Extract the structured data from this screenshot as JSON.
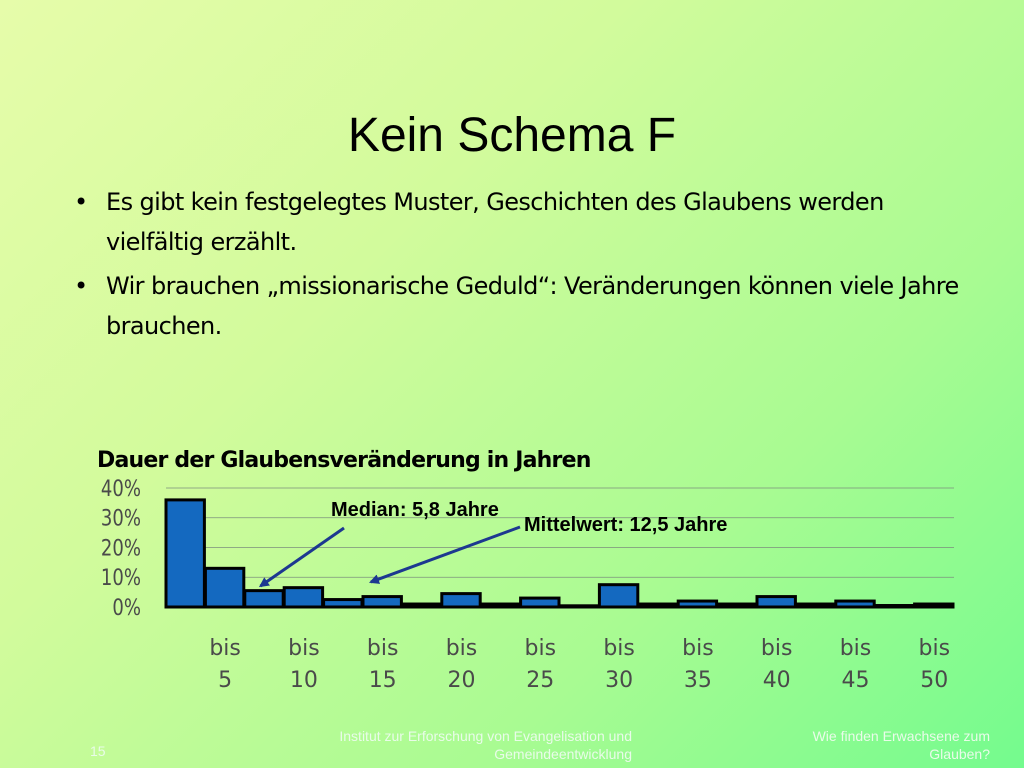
{
  "slide": {
    "title": "Kein Schema F",
    "bullets": [
      "Es gibt kein festgelegtes Muster, Geschichten des Glaubens werden vielfältig erzählt.",
      "Wir brauchen „missionarische Geduld“: Veränderungen können viele Jahre brauchen."
    ],
    "bullet_symbol": "•"
  },
  "chart_data": {
    "type": "bar",
    "title": "Dauer der Glaubensveränderung in Jahren",
    "ylim": [
      0,
      40
    ],
    "yticks": [
      "0%",
      "10%",
      "20%",
      "30%",
      "40%"
    ],
    "grid": true,
    "values": [
      36,
      13,
      5.5,
      6.5,
      2.5,
      3.5,
      1,
      4.5,
      1,
      3,
      0,
      7.5,
      1,
      2,
      1,
      3.5,
      1,
      2,
      0.5,
      1
    ],
    "xtick_labels": [
      {
        "top": "bis",
        "bottom": "5"
      },
      {
        "top": "bis",
        "bottom": "10"
      },
      {
        "top": "bis",
        "bottom": "15"
      },
      {
        "top": "bis",
        "bottom": "20"
      },
      {
        "top": "bis",
        "bottom": "25"
      },
      {
        "top": "bis",
        "bottom": "30"
      },
      {
        "top": "bis",
        "bottom": "35"
      },
      {
        "top": "bis",
        "bottom": "40"
      },
      {
        "top": "bis",
        "bottom": "45"
      },
      {
        "top": "bis",
        "bottom": "50"
      }
    ],
    "annotations": [
      {
        "text": "Median: 5,8 Jahre",
        "points_to_bin": 2
      },
      {
        "text": "Mittelwert: 12,5 Jahre",
        "points_to_bin": 5
      }
    ],
    "bar_color": "#1469c0",
    "arrow_color": "#1d3890"
  },
  "footer": {
    "page_number": "15",
    "institute_line1": "Institut zur Erforschung von Evangelisation und",
    "institute_line2": "Gemeindeentwicklung",
    "topic_line1": "Wie finden Erwachsene zum",
    "topic_line2": "Glauben?"
  }
}
